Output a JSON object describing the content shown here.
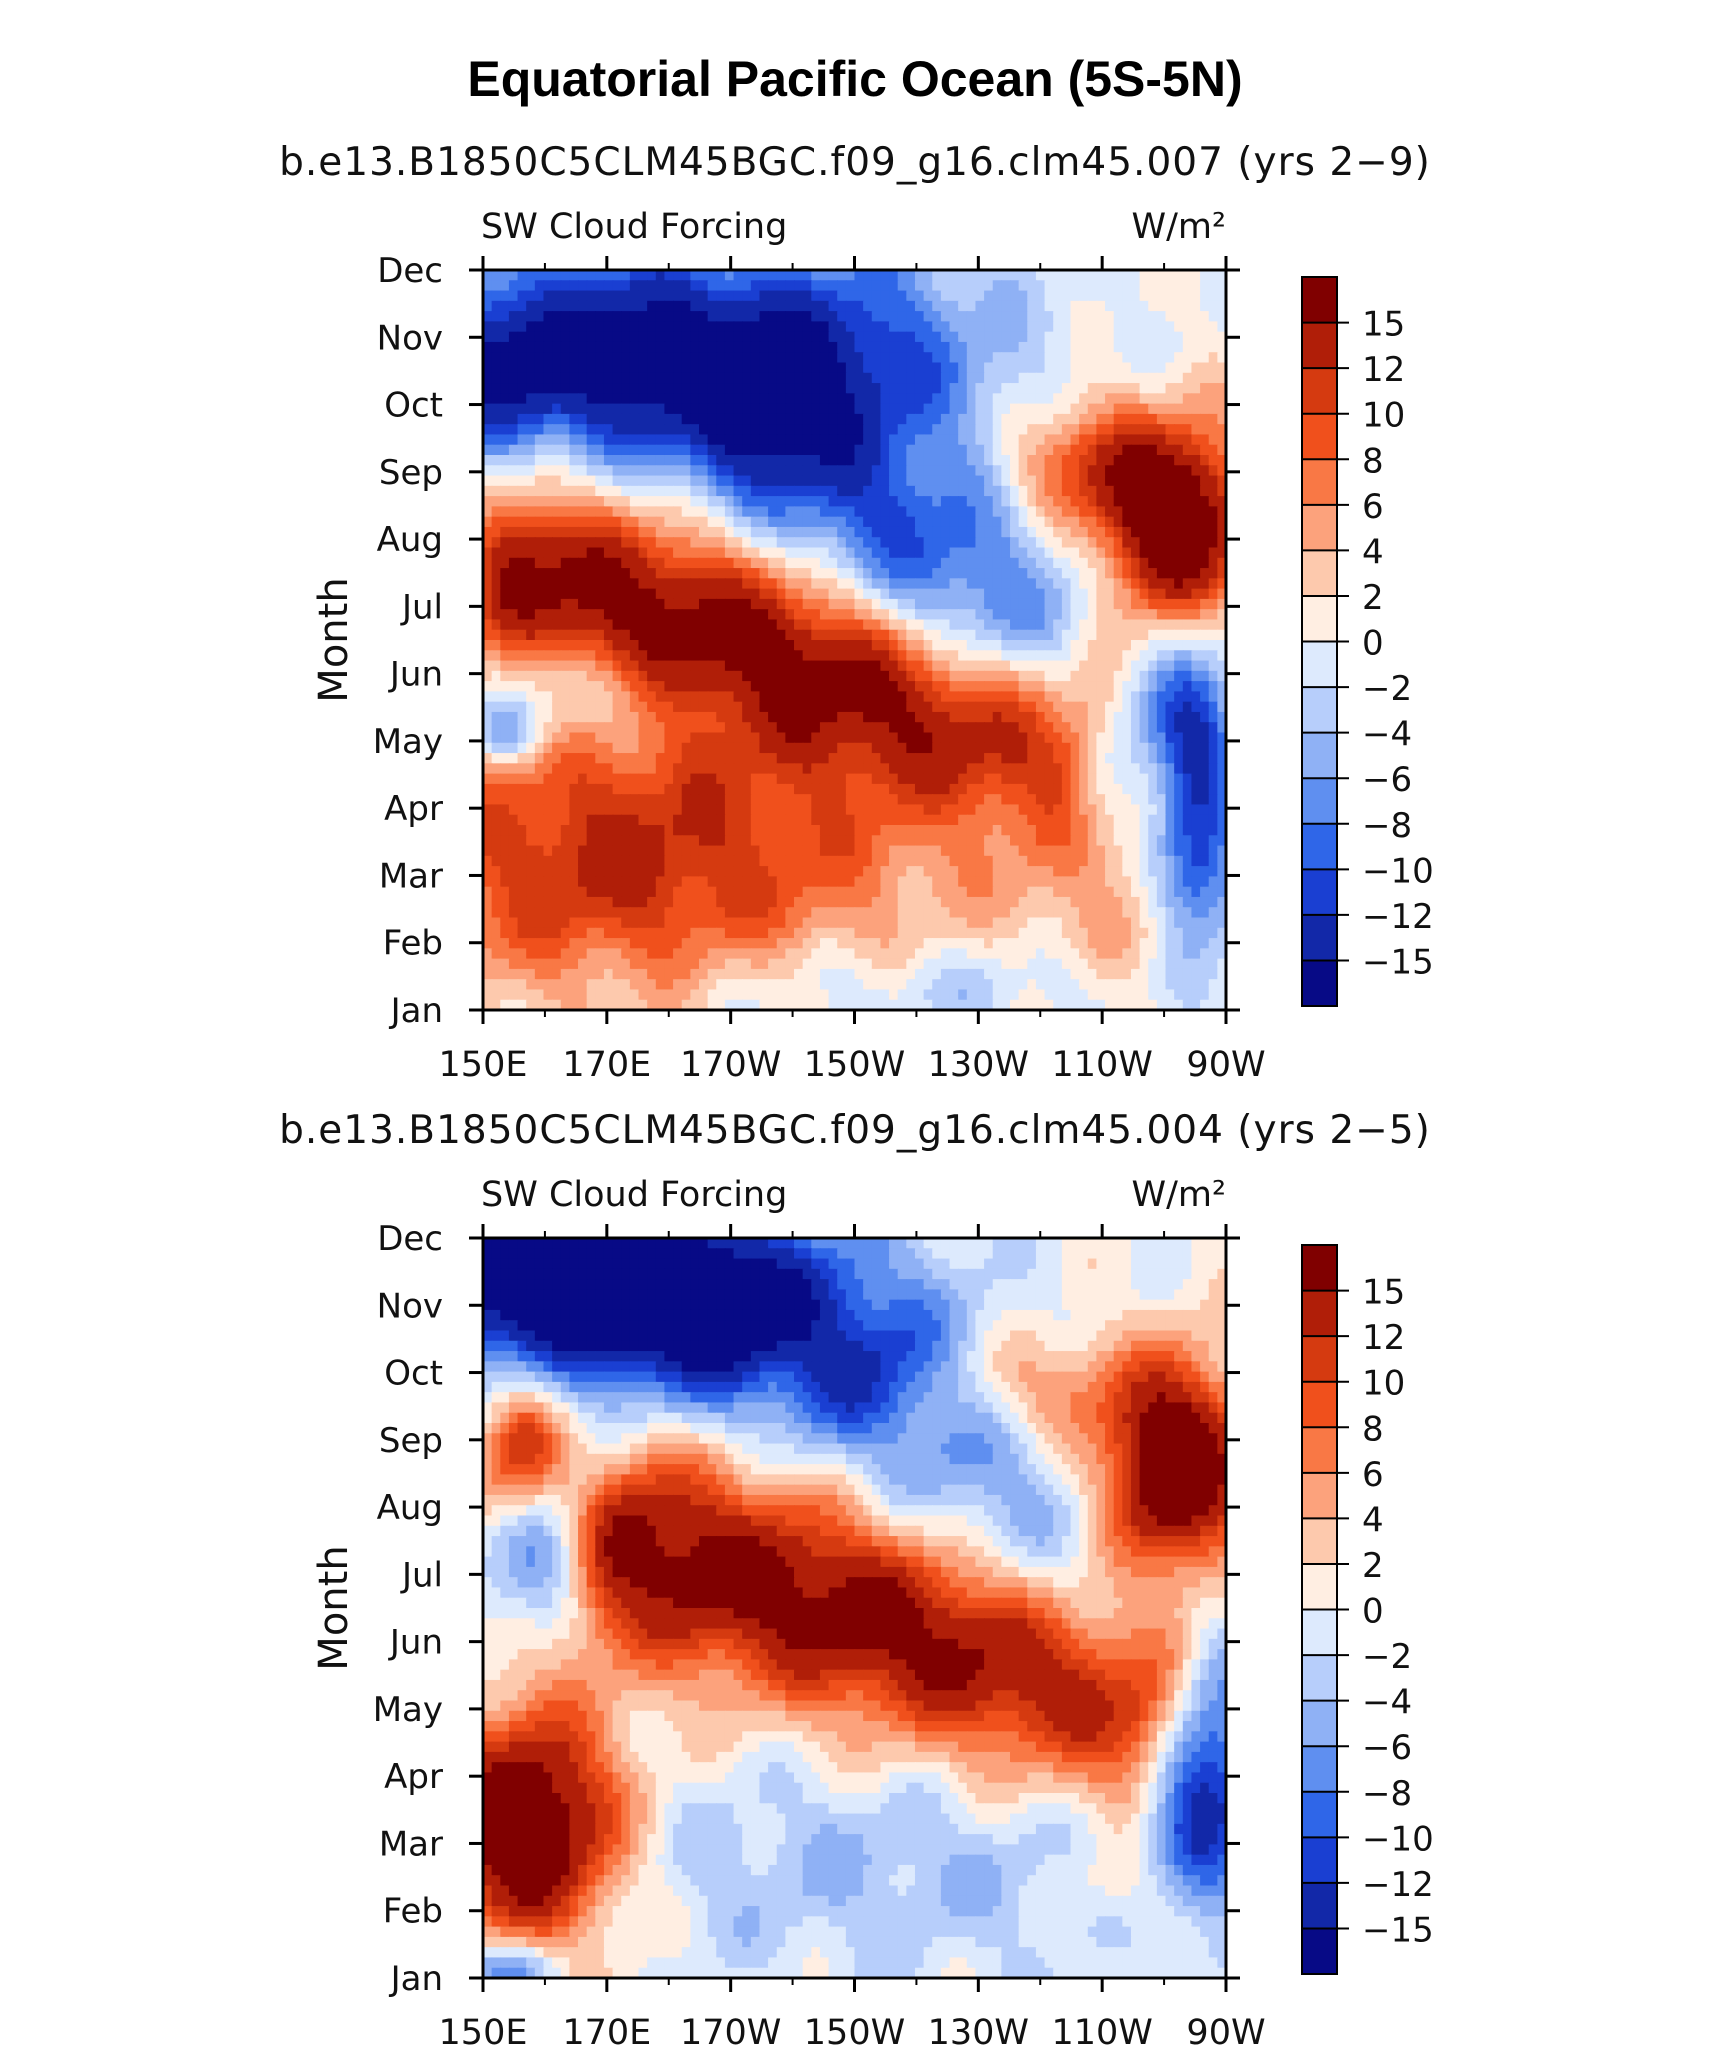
{
  "title": "Equatorial Pacific Ocean (5S-5N)",
  "colorbar": {
    "labels": [
      "15",
      "12",
      "10",
      "8",
      "6",
      "4",
      "2",
      "0",
      "−2",
      "−4",
      "−6",
      "−8",
      "−10",
      "−12",
      "−15"
    ],
    "colors": [
      "#800000",
      "#b01e08",
      "#d53a10",
      "#f0501c",
      "#f97845",
      "#fca27c",
      "#fdc9ad",
      "#ffeee2",
      "#ddeafd",
      "#b7cefb",
      "#8fb1f5",
      "#5f8ff0",
      "#2f66e8",
      "#1a3fd2",
      "#1228a8",
      "#070a86"
    ]
  },
  "chart_data": [
    {
      "type": "heatmap",
      "subtitle": "b.e13.B1850C5CLM45BGC.f09_g16.clm45.007 (yrs 2−9)",
      "left_label": "SW Cloud Forcing",
      "right_label": "W/m²",
      "ylabel": "Month",
      "x_ticks": [
        "150E",
        "170E",
        "170W",
        "150W",
        "130W",
        "110W",
        "90W"
      ],
      "y_ticks": [
        "Jan",
        "Feb",
        "Mar",
        "Apr",
        "May",
        "Jun",
        "Jul",
        "Aug",
        "Sep",
        "Oct",
        "Nov",
        "Dec"
      ],
      "x_range": [
        "150E",
        "90W"
      ],
      "y_range": [
        "Jan",
        "Dec"
      ],
      "levels": [
        -15,
        -12,
        -10,
        -8,
        -6,
        -4,
        -2,
        0,
        2,
        4,
        6,
        8,
        10,
        12,
        15
      ]
    },
    {
      "type": "heatmap",
      "subtitle": "b.e13.B1850C5CLM45BGC.f09_g16.clm45.004 (yrs 2−5)",
      "left_label": "SW Cloud Forcing",
      "right_label": "W/m²",
      "ylabel": "Month",
      "x_ticks": [
        "150E",
        "170E",
        "170W",
        "150W",
        "130W",
        "110W",
        "90W"
      ],
      "y_ticks": [
        "Jan",
        "Feb",
        "Mar",
        "Apr",
        "May",
        "Jun",
        "Jul",
        "Aug",
        "Sep",
        "Oct",
        "Nov",
        "Dec"
      ],
      "x_range": [
        "150E",
        "90W"
      ],
      "y_range": [
        "Jan",
        "Dec"
      ],
      "levels": [
        -15,
        -12,
        -10,
        -8,
        -6,
        -4,
        -2,
        0,
        2,
        4,
        6,
        8,
        10,
        12,
        15
      ]
    }
  ]
}
